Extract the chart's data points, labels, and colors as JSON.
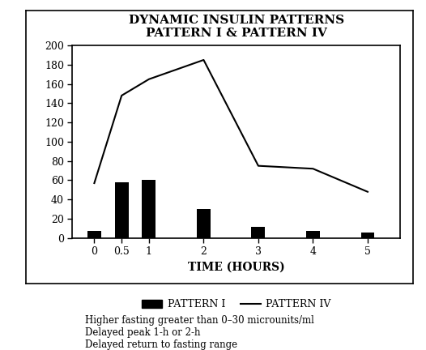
{
  "title": "DYNAMIC INSULIN PATTERNS",
  "subtitle": "PATTERN I & PATTERN IV",
  "xlabel": "TIME (HOURS)",
  "ylabel": "",
  "bar_x": [
    0,
    0.5,
    1,
    2,
    3,
    4,
    5
  ],
  "bar_heights": [
    7,
    58,
    60,
    30,
    12,
    7,
    6
  ],
  "bar_width": 0.25,
  "bar_color": "#000000",
  "line_x": [
    0,
    0.5,
    1,
    2,
    3,
    4,
    5
  ],
  "line_y": [
    57,
    148,
    165,
    185,
    75,
    72,
    48
  ],
  "line_color": "#000000",
  "line_width": 1.5,
  "ylim": [
    0,
    200
  ],
  "yticks": [
    0,
    20,
    40,
    60,
    80,
    100,
    120,
    140,
    160,
    180,
    200
  ],
  "xticks": [
    0,
    0.5,
    1,
    2,
    3,
    4,
    5
  ],
  "xticklabels": [
    "0",
    "0.5",
    "1",
    "2",
    "3",
    "4",
    "5"
  ],
  "legend_bar_label": "PATTERN I",
  "legend_line_label": "PATTERN IV",
  "annotation_lines": [
    "Higher fasting greater than 0–30 microunits/ml",
    "Delayed peak 1-h or 2-h",
    "Delayed return to fasting range"
  ],
  "bg_color": "#ffffff",
  "outer_bg": "#ffffff"
}
